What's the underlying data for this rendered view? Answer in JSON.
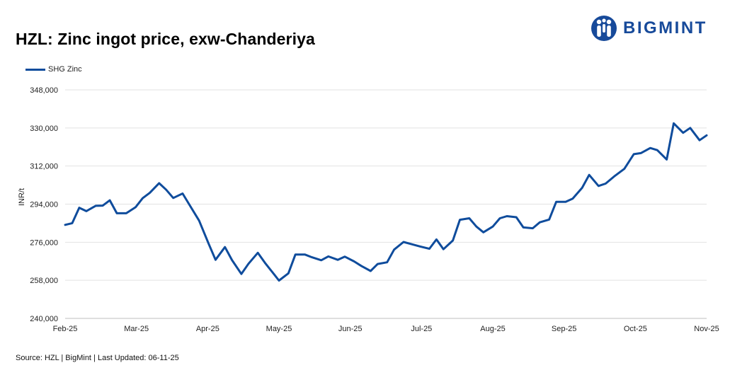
{
  "title": "HZL:  Zinc ingot price, exw-Chanderiya",
  "brand": {
    "name": "BIGMINT",
    "color": "#174a9a"
  },
  "source": "Source: HZL | BigMint | Last Updated: 06-11-25",
  "chart_data": {
    "type": "line",
    "title": "HZL:  Zinc ingot price, exw-Chanderiya",
    "xlabel": "",
    "ylabel": "INR/t",
    "ylim": [
      240000,
      348000
    ],
    "yticks": [
      240000,
      258000,
      276000,
      294000,
      312000,
      330000,
      348000
    ],
    "ytick_labels": [
      "240,000",
      "258,000",
      "276,000",
      "294,000",
      "312,000",
      "330,000",
      "348,000"
    ],
    "x_tick_labels": [
      "Feb-25",
      "Mar-25",
      "Apr-25",
      "May-25",
      "Jun-25",
      "Jul-25",
      "Aug-25",
      "Sep-25",
      "Oct-25",
      "Nov-25"
    ],
    "grid": "horizontal",
    "legend_position": "top-left",
    "series": [
      {
        "name": "SHG Zinc",
        "color": "#0f4c9c",
        "values": [
          [
            "2025-02-01",
            284200
          ],
          [
            "2025-02-04",
            285000
          ],
          [
            "2025-02-07",
            292300
          ],
          [
            "2025-02-10",
            290700
          ],
          [
            "2025-02-14",
            293200
          ],
          [
            "2025-02-17",
            293300
          ],
          [
            "2025-02-20",
            295800
          ],
          [
            "2025-02-23",
            289700
          ],
          [
            "2025-02-27",
            289700
          ],
          [
            "2025-03-03",
            292600
          ],
          [
            "2025-03-06",
            296800
          ],
          [
            "2025-03-09",
            299300
          ],
          [
            "2025-03-13",
            303900
          ],
          [
            "2025-03-16",
            300800
          ],
          [
            "2025-03-19",
            296900
          ],
          [
            "2025-03-23",
            299000
          ],
          [
            "2025-03-26",
            293500
          ],
          [
            "2025-03-30",
            286200
          ],
          [
            "2025-04-03",
            275500
          ],
          [
            "2025-04-06",
            267700
          ],
          [
            "2025-04-10",
            273700
          ],
          [
            "2025-04-13",
            267600
          ],
          [
            "2025-04-17",
            261000
          ],
          [
            "2025-04-20",
            265800
          ],
          [
            "2025-04-24",
            271000
          ],
          [
            "2025-04-27",
            266300
          ],
          [
            "2025-05-01",
            260700
          ],
          [
            "2025-05-03",
            257900
          ],
          [
            "2025-05-07",
            261300
          ],
          [
            "2025-05-10",
            270200
          ],
          [
            "2025-05-14",
            270200
          ],
          [
            "2025-05-17",
            268900
          ],
          [
            "2025-05-21",
            267500
          ],
          [
            "2025-05-24",
            269300
          ],
          [
            "2025-05-28",
            267700
          ],
          [
            "2025-05-31",
            269200
          ],
          [
            "2025-06-04",
            266900
          ],
          [
            "2025-06-07",
            264800
          ],
          [
            "2025-06-11",
            262400
          ],
          [
            "2025-06-14",
            265700
          ],
          [
            "2025-06-18",
            266500
          ],
          [
            "2025-06-21",
            272500
          ],
          [
            "2025-06-25",
            276100
          ],
          [
            "2025-06-28",
            275200
          ],
          [
            "2025-07-02",
            274000
          ],
          [
            "2025-07-06",
            272900
          ],
          [
            "2025-07-09",
            277300
          ],
          [
            "2025-07-12",
            272700
          ],
          [
            "2025-07-16",
            276800
          ],
          [
            "2025-07-19",
            286600
          ],
          [
            "2025-07-23",
            287300
          ],
          [
            "2025-07-26",
            283400
          ],
          [
            "2025-07-29",
            280700
          ],
          [
            "2025-08-02",
            283400
          ],
          [
            "2025-08-05",
            287300
          ],
          [
            "2025-08-08",
            288300
          ],
          [
            "2025-08-12",
            287800
          ],
          [
            "2025-08-15",
            283000
          ],
          [
            "2025-08-19",
            282600
          ],
          [
            "2025-08-22",
            285400
          ],
          [
            "2025-08-26",
            286700
          ],
          [
            "2025-08-29",
            295100
          ],
          [
            "2025-09-02",
            295100
          ],
          [
            "2025-09-05",
            296600
          ],
          [
            "2025-09-09",
            301700
          ],
          [
            "2025-09-12",
            307800
          ],
          [
            "2025-09-16",
            302600
          ],
          [
            "2025-09-19",
            303700
          ],
          [
            "2025-09-23",
            307400
          ],
          [
            "2025-09-27",
            310700
          ],
          [
            "2025-10-01",
            317600
          ],
          [
            "2025-10-04",
            318100
          ],
          [
            "2025-10-08",
            320500
          ],
          [
            "2025-10-11",
            319500
          ],
          [
            "2025-10-15",
            315100
          ],
          [
            "2025-10-18",
            332200
          ],
          [
            "2025-10-22",
            327700
          ],
          [
            "2025-10-25",
            330000
          ],
          [
            "2025-10-29",
            324200
          ],
          [
            "2025-11-01",
            326500
          ]
        ]
      }
    ]
  }
}
